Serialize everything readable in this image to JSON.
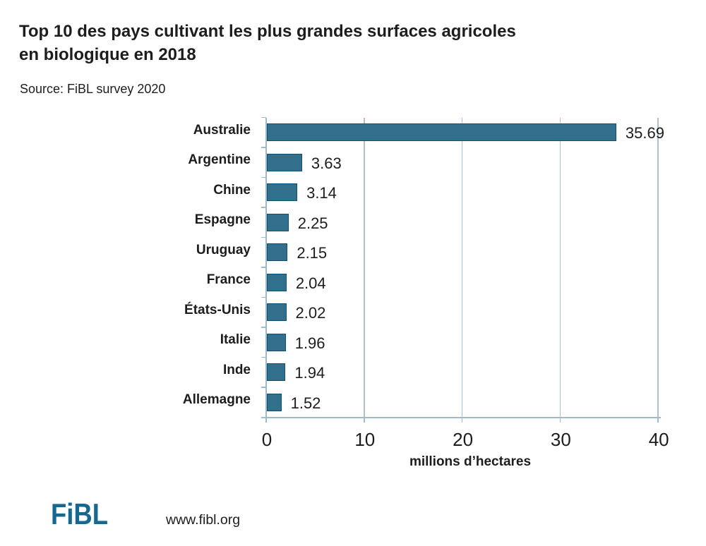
{
  "title": "Top 10 des pays cultivant les plus grandes surfaces agricoles en biologique en 2018",
  "source": "Source: FiBL survey 2020",
  "chart_data": {
    "type": "bar",
    "orientation": "horizontal",
    "categories": [
      "Australie",
      "Argentine",
      "Chine",
      "Espagne",
      "Uruguay",
      "France",
      "États-Unis",
      "Italie",
      "Inde",
      "Allemagne"
    ],
    "values": [
      35.69,
      3.63,
      3.14,
      2.25,
      2.15,
      2.04,
      2.02,
      1.96,
      1.94,
      1.52
    ],
    "value_labels": [
      "35.69",
      "3.63",
      "3.14",
      "2.25",
      "2.15",
      "2.04",
      "2.02",
      "1.96",
      "1.94",
      "1.52"
    ],
    "xlabel": "millions d’hectares",
    "xticks": [
      0,
      10,
      20,
      30,
      40
    ],
    "xlim": [
      0,
      40
    ],
    "grid": true,
    "legend": "none",
    "bar_color": "#316f8d",
    "bar_border_color": "#0b5175",
    "axis_color": "#9fbac8",
    "gridline_color": "#aac2cf"
  },
  "footer": {
    "logo_text": "FiBL",
    "logo_color": "#176890",
    "url": "www.fibl.org"
  }
}
